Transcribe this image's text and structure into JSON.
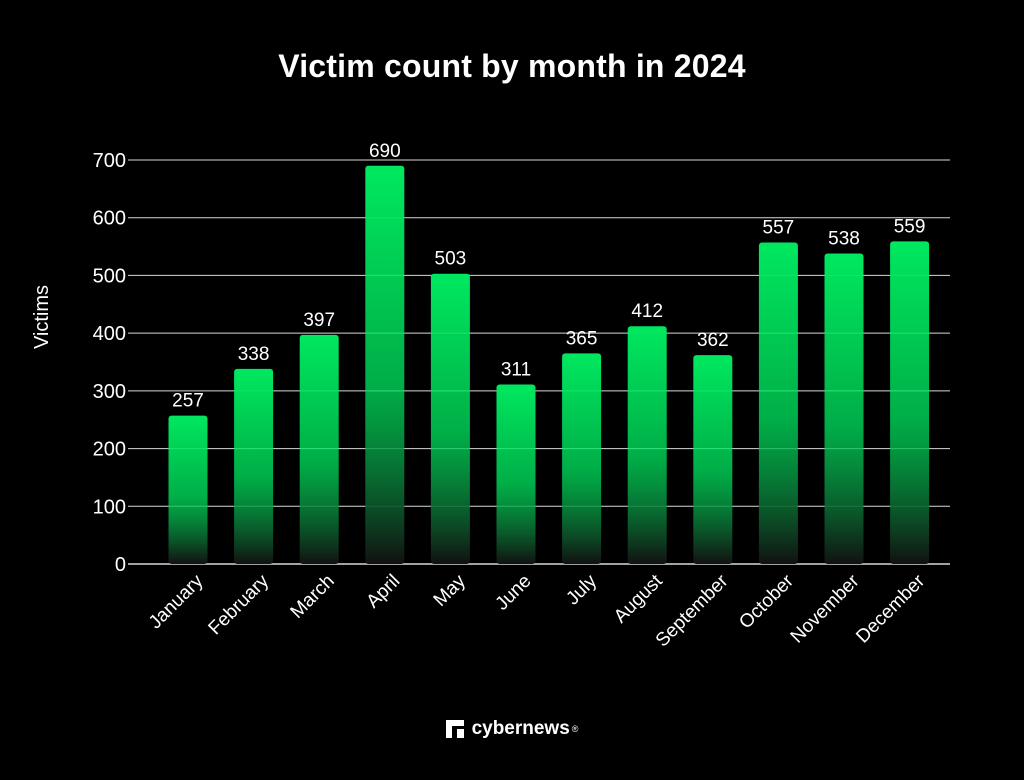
{
  "chart_data": {
    "type": "bar",
    "title": "Victim count by month in 2024",
    "xlabel": "",
    "ylabel": "Victims",
    "categories": [
      "January",
      "February",
      "March",
      "April",
      "May",
      "June",
      "July",
      "August",
      "September",
      "October",
      "November",
      "December"
    ],
    "values": [
      257,
      338,
      397,
      690,
      503,
      311,
      365,
      412,
      362,
      557,
      538,
      559
    ],
    "ylim": [
      0,
      700
    ],
    "yticks": [
      0,
      100,
      200,
      300,
      400,
      500,
      600,
      700
    ],
    "grid": true,
    "data_labels": true,
    "colors": {
      "bar_top": "#00e85f",
      "bar_bottom": "#111111",
      "grid": "#d8d8d8",
      "background": "#000000"
    }
  },
  "brand": {
    "name": "cybernews",
    "mark": "®"
  }
}
